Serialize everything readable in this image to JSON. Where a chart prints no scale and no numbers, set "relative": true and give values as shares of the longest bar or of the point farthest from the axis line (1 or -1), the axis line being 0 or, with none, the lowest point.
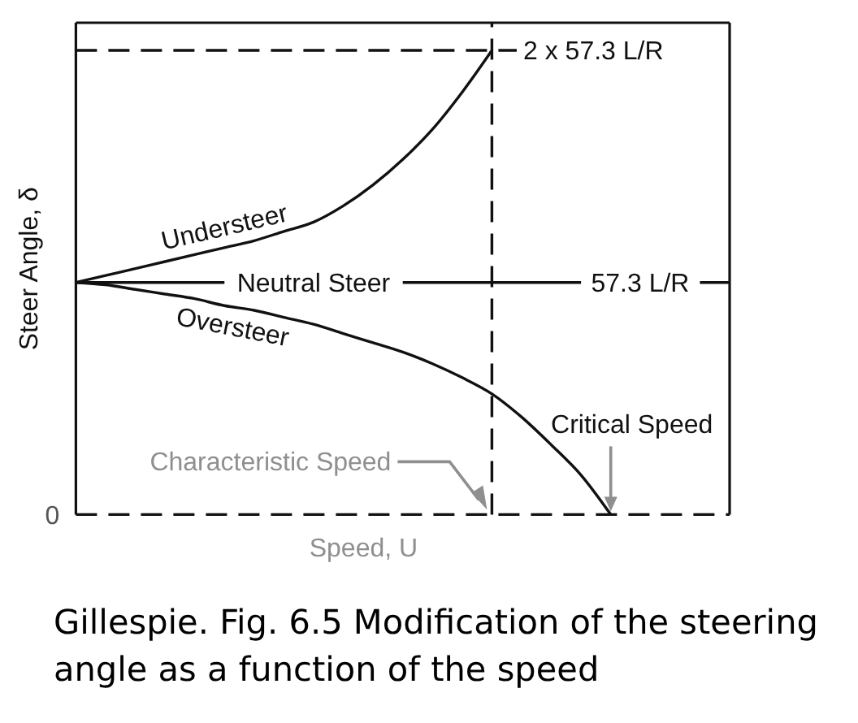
{
  "chart_data": {
    "type": "line",
    "relative": true,
    "xlabel": "Speed, U",
    "ylabel": "Steer Angle, δ",
    "categories": [
      null,
      null,
      null,
      null,
      null,
      null,
      null,
      null,
      null,
      null,
      null,
      null,
      null,
      null,
      null,
      null,
      null,
      null,
      null,
      null,
      null,
      null,
      null
    ],
    "series": [
      {
        "name": "Understeer",
        "color": "#111111",
        "values": [
          0.5,
          0.515,
          0.53,
          0.545,
          0.56,
          0.575,
          0.59,
          0.61,
          0.63,
          0.665,
          0.71,
          0.765,
          0.83,
          0.91,
          1,
          null,
          null,
          null,
          null,
          null,
          null,
          null,
          null
        ]
      },
      {
        "name": "Neutral Steer",
        "color": "#111111",
        "values": [
          0.5,
          0.5,
          0.5,
          0.5,
          0.5,
          0.5,
          null,
          null,
          null,
          null,
          null,
          0.5,
          0.5,
          0.5,
          0.5,
          0.5,
          0.5,
          0.5,
          null,
          null,
          null,
          0.5,
          0.5
        ]
      },
      {
        "name": "Oversteer",
        "color": "#111111",
        "values": [
          0.5,
          0.495,
          0.485,
          0.475,
          0.465,
          0.45,
          0.44,
          0.425,
          0.41,
          0.39,
          0.37,
          0.35,
          0.325,
          0.295,
          0.26,
          0.21,
          0.15,
          0.085,
          0,
          null,
          null,
          null,
          null
        ]
      }
    ],
    "ref_lines": [
      {
        "axis": "y",
        "value": 1,
        "label": "2 x 57.3 L/R",
        "line_style": "dashed",
        "color": "#111111"
      },
      {
        "axis": "y",
        "value": 0,
        "label": "0",
        "line_style": "dashed",
        "color": "#111111"
      }
    ],
    "annotations": [
      "57.3 L/R",
      {
        "text": "Critical Speed",
        "y": 0
      },
      "Characteristic Speed",
      "Gillespie. Fig. 6.5 Modification of the steering angle as a function of the speed"
    ]
  }
}
